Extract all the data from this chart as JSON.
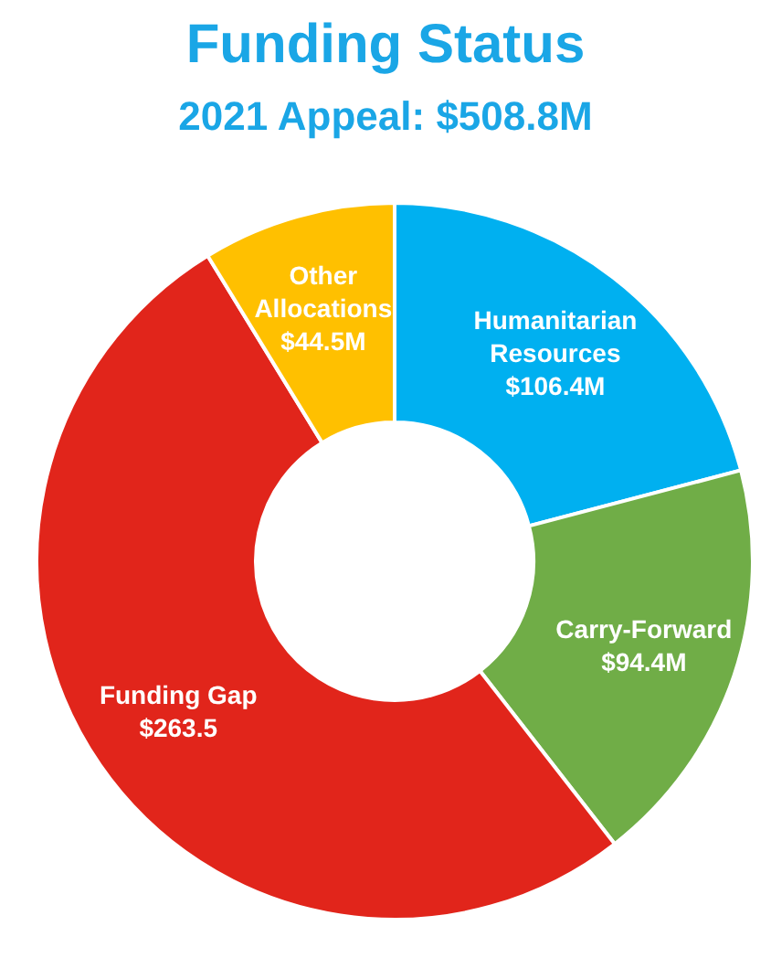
{
  "chart_data": {
    "type": "donut",
    "title": "Funding Status",
    "subtitle": "2021 Appeal: $508.8M",
    "categories": [
      "Humanitarian Resources",
      "Carry-Forward",
      "Funding Gap",
      "Other Allocations"
    ],
    "values": [
      106.4,
      94.4,
      263.5,
      44.5
    ],
    "colors": [
      "#00b0f0",
      "#70ad47",
      "#e1251b",
      "#ffc000"
    ],
    "value_labels": [
      "$106.4M",
      "$94.4M",
      "$263.5",
      "$44.5M"
    ],
    "legend": false
  }
}
